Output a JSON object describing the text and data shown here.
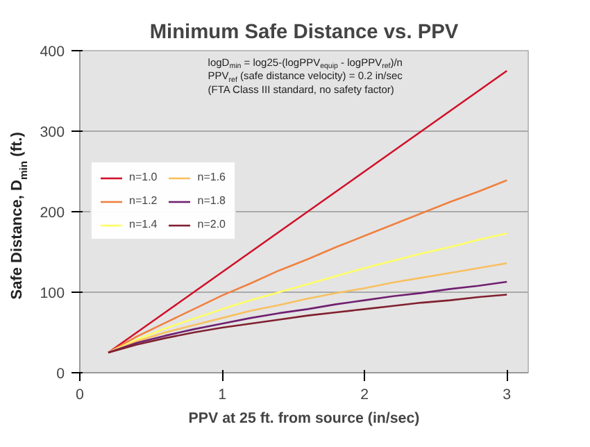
{
  "chart_data": {
    "type": "line",
    "title": "Minimum Safe Distance vs. PPV",
    "xlabel": "PPV at 25 ft. from source (in/sec)",
    "ylabel": "Safe Distance, D$_{min}$ (ft.)",
    "annotations": [
      "logD$_{min}$ = log25-(logPPV$_{equip}$ - logPPV$_{ref}$)/n",
      "PPV$_{ref}$ (safe distance velocity) = 0.2 in/sec",
      "(FTA Class III standard, no safety factor)"
    ],
    "x": [
      0.2,
      0.4,
      0.6,
      0.8,
      1.0,
      1.2,
      1.4,
      1.6,
      1.8,
      2.0,
      2.2,
      2.4,
      2.6,
      2.8,
      3.0
    ],
    "series": [
      {
        "name": "n=1.0",
        "color": "#d0102a",
        "values": [
          25,
          50,
          75,
          100,
          125,
          150,
          175,
          200,
          225,
          250,
          275,
          300,
          325,
          350,
          375
        ]
      },
      {
        "name": "n=1.2",
        "color": "#f08040",
        "values": [
          25,
          45,
          62,
          79,
          96,
          111,
          127,
          141,
          156,
          170,
          184,
          198,
          212,
          225,
          239
        ]
      },
      {
        "name": "n=1.4",
        "color": "#ffff66",
        "values": [
          25,
          41,
          55,
          67,
          79,
          90,
          100,
          110,
          120,
          130,
          139,
          148,
          156,
          165,
          173
        ]
      },
      {
        "name": "n=1.6",
        "color": "#f8c060",
        "values": [
          25,
          39,
          50,
          59,
          68,
          77,
          84,
          92,
          99,
          105,
          112,
          118,
          124,
          130,
          136
        ]
      },
      {
        "name": "n=1.8",
        "color": "#702070",
        "values": [
          25,
          37,
          46,
          54,
          61,
          68,
          74,
          79,
          85,
          90,
          95,
          99,
          104,
          108,
          113
        ]
      },
      {
        "name": "n=2.0",
        "color": "#802030",
        "values": [
          25,
          35,
          43,
          50,
          56,
          61,
          66,
          71,
          75,
          79,
          83,
          87,
          90,
          94,
          97
        ]
      }
    ],
    "xlim": [
      0,
      3.15
    ],
    "ylim": [
      0,
      400
    ],
    "xticks": [
      0,
      1,
      2,
      3
    ],
    "yticks": [
      0,
      100,
      200,
      300,
      400
    ],
    "grid": "y",
    "legend": "top left",
    "marker": "none",
    "line_style": "solid"
  }
}
